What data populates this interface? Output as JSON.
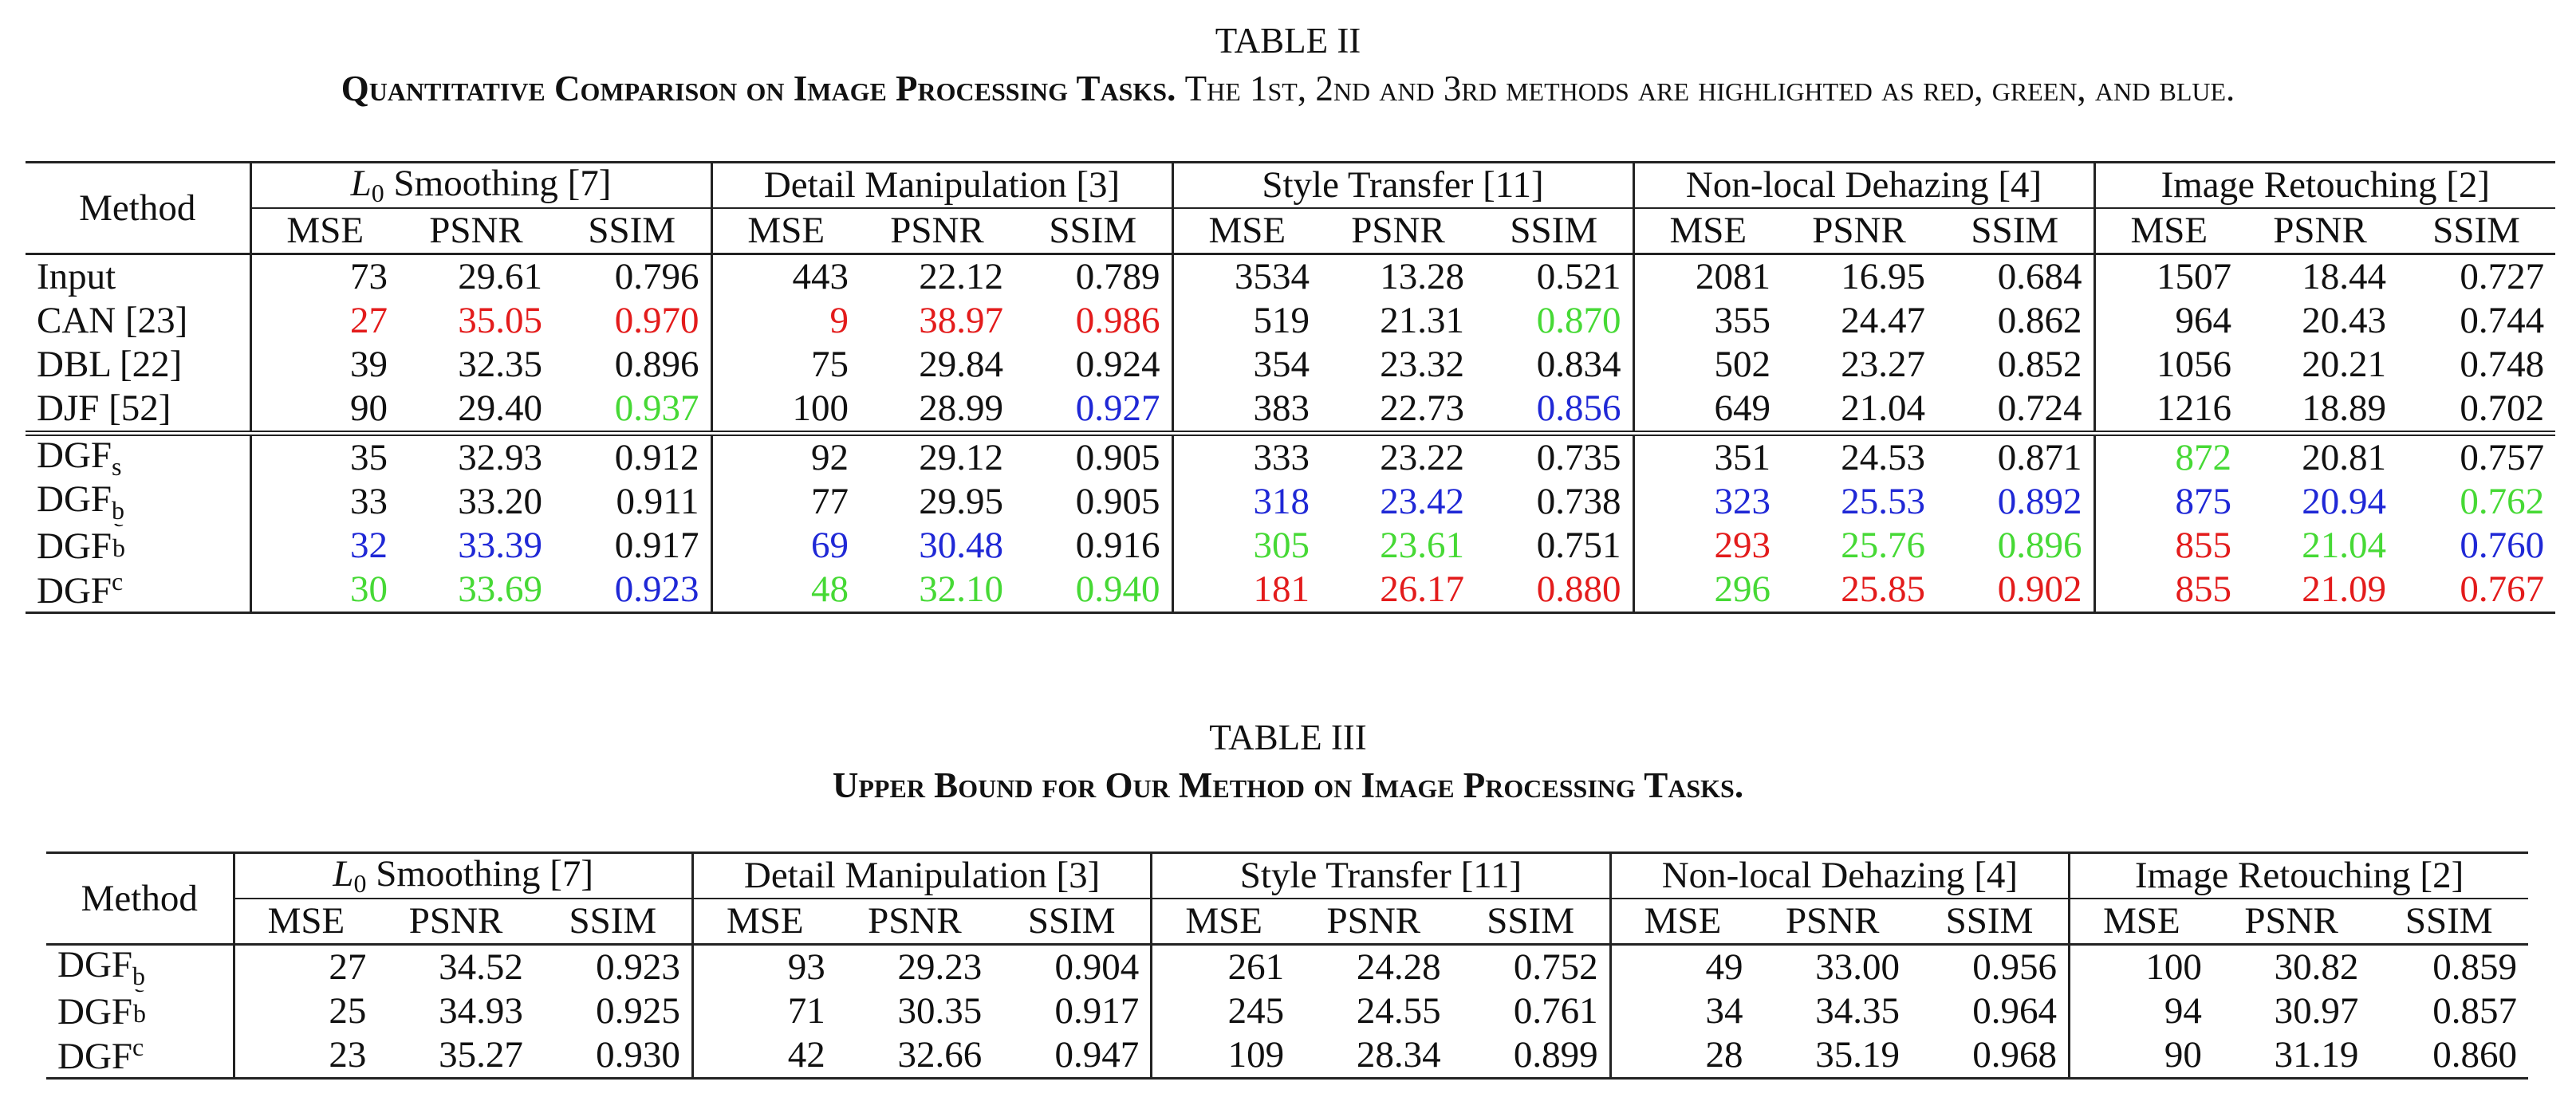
{
  "table2": {
    "label": "TABLE II",
    "title_bold": "Quantitative Comparison on Image Processing Tasks.",
    "title_rest": "The 1st, 2nd and 3rd methods are highlighted as red, green, and blue.",
    "method_header": "Method",
    "groups": [
      "Smoothing [7]",
      "Detail Manipulation [3]",
      "Style Transfer [11]",
      "Non-local Dehazing [4]",
      "Image Retouching [2]"
    ],
    "group0_prefix": "L",
    "group0_sub": "0",
    "metrics": [
      "MSE",
      "PSNR",
      "SSIM"
    ],
    "rows": [
      {
        "name": "Input",
        "cells": [
          [
            "73",
            "k"
          ],
          [
            "29.61",
            "k"
          ],
          [
            "0.796",
            "k"
          ],
          [
            "443",
            "k"
          ],
          [
            "22.12",
            "k"
          ],
          [
            "0.789",
            "k"
          ],
          [
            "3534",
            "k"
          ],
          [
            "13.28",
            "k"
          ],
          [
            "0.521",
            "k"
          ],
          [
            "2081",
            "k"
          ],
          [
            "16.95",
            "k"
          ],
          [
            "0.684",
            "k"
          ],
          [
            "1507",
            "k"
          ],
          [
            "18.44",
            "k"
          ],
          [
            "0.727",
            "k"
          ]
        ]
      },
      {
        "name": "CAN [23]",
        "cells": [
          [
            "27",
            "r"
          ],
          [
            "35.05",
            "r"
          ],
          [
            "0.970",
            "r"
          ],
          [
            "9",
            "r"
          ],
          [
            "38.97",
            "r"
          ],
          [
            "0.986",
            "r"
          ],
          [
            "519",
            "k"
          ],
          [
            "21.31",
            "k"
          ],
          [
            "0.870",
            "g"
          ],
          [
            "355",
            "k"
          ],
          [
            "24.47",
            "k"
          ],
          [
            "0.862",
            "k"
          ],
          [
            "964",
            "k"
          ],
          [
            "20.43",
            "k"
          ],
          [
            "0.744",
            "k"
          ]
        ]
      },
      {
        "name": "DBL [22]",
        "cells": [
          [
            "39",
            "k"
          ],
          [
            "32.35",
            "k"
          ],
          [
            "0.896",
            "k"
          ],
          [
            "75",
            "k"
          ],
          [
            "29.84",
            "k"
          ],
          [
            "0.924",
            "k"
          ],
          [
            "354",
            "k"
          ],
          [
            "23.32",
            "k"
          ],
          [
            "0.834",
            "k"
          ],
          [
            "502",
            "k"
          ],
          [
            "23.27",
            "k"
          ],
          [
            "0.852",
            "k"
          ],
          [
            "1056",
            "k"
          ],
          [
            "20.21",
            "k"
          ],
          [
            "0.748",
            "k"
          ]
        ]
      },
      {
        "name": "DJF [52]",
        "cells": [
          [
            "90",
            "k"
          ],
          [
            "29.40",
            "k"
          ],
          [
            "0.937",
            "g"
          ],
          [
            "100",
            "k"
          ],
          [
            "28.99",
            "k"
          ],
          [
            "0.927",
            "b"
          ],
          [
            "383",
            "k"
          ],
          [
            "22.73",
            "k"
          ],
          [
            "0.856",
            "b"
          ],
          [
            "649",
            "k"
          ],
          [
            "21.04",
            "k"
          ],
          [
            "0.724",
            "k"
          ],
          [
            "1216",
            "k"
          ],
          [
            "18.89",
            "k"
          ],
          [
            "0.702",
            "k"
          ]
        ]
      },
      {
        "name": "DGF",
        "sub": "s",
        "cells": [
          [
            "35",
            "k"
          ],
          [
            "32.93",
            "k"
          ],
          [
            "0.912",
            "k"
          ],
          [
            "92",
            "k"
          ],
          [
            "29.12",
            "k"
          ],
          [
            "0.905",
            "k"
          ],
          [
            "333",
            "k"
          ],
          [
            "23.22",
            "k"
          ],
          [
            "0.735",
            "k"
          ],
          [
            "351",
            "k"
          ],
          [
            "24.53",
            "k"
          ],
          [
            "0.871",
            "k"
          ],
          [
            "872",
            "g"
          ],
          [
            "20.81",
            "k"
          ],
          [
            "0.757",
            "k"
          ]
        ]
      },
      {
        "name": "DGF",
        "sub": "b",
        "cells": [
          [
            "33",
            "k"
          ],
          [
            "33.20",
            "k"
          ],
          [
            "0.911",
            "k"
          ],
          [
            "77",
            "k"
          ],
          [
            "29.95",
            "k"
          ],
          [
            "0.905",
            "k"
          ],
          [
            "318",
            "b"
          ],
          [
            "23.42",
            "b"
          ],
          [
            "0.738",
            "k"
          ],
          [
            "323",
            "b"
          ],
          [
            "25.53",
            "b"
          ],
          [
            "0.892",
            "b"
          ],
          [
            "875",
            "b"
          ],
          [
            "20.94",
            "b"
          ],
          [
            "0.762",
            "g"
          ]
        ]
      },
      {
        "name": "DGF",
        "sub": "b",
        "sup": "c",
        "cells": [
          [
            "32",
            "b"
          ],
          [
            "33.39",
            "b"
          ],
          [
            "0.917",
            "k"
          ],
          [
            "69",
            "b"
          ],
          [
            "30.48",
            "b"
          ],
          [
            "0.916",
            "k"
          ],
          [
            "305",
            "g"
          ],
          [
            "23.61",
            "g"
          ],
          [
            "0.751",
            "k"
          ],
          [
            "293",
            "r"
          ],
          [
            "25.76",
            "g"
          ],
          [
            "0.896",
            "g"
          ],
          [
            "855",
            "r"
          ],
          [
            "21.04",
            "g"
          ],
          [
            "0.760",
            "b"
          ]
        ]
      },
      {
        "name": "DGF",
        "sup": "c",
        "cells": [
          [
            "30",
            "g"
          ],
          [
            "33.69",
            "g"
          ],
          [
            "0.923",
            "b"
          ],
          [
            "48",
            "g"
          ],
          [
            "32.10",
            "g"
          ],
          [
            "0.940",
            "g"
          ],
          [
            "181",
            "r"
          ],
          [
            "26.17",
            "r"
          ],
          [
            "0.880",
            "r"
          ],
          [
            "296",
            "g"
          ],
          [
            "25.85",
            "r"
          ],
          [
            "0.902",
            "r"
          ],
          [
            "855",
            "r"
          ],
          [
            "21.09",
            "r"
          ],
          [
            "0.767",
            "r"
          ]
        ]
      }
    ]
  },
  "table3": {
    "label": "TABLE III",
    "title_bold": "Upper Bound for Our Method on Image Processing Tasks.",
    "method_header": "Method",
    "groups": [
      "Smoothing [7]",
      "Detail Manipulation [3]",
      "Style Transfer [11]",
      "Non-local Dehazing [4]",
      "Image Retouching [2]"
    ],
    "group0_prefix": "L",
    "group0_sub": "0",
    "metrics": [
      "MSE",
      "PSNR",
      "SSIM"
    ],
    "rows": [
      {
        "name": "DGF",
        "sub": "b",
        "cells": [
          [
            "27",
            "k"
          ],
          [
            "34.52",
            "k"
          ],
          [
            "0.923",
            "k"
          ],
          [
            "93",
            "k"
          ],
          [
            "29.23",
            "k"
          ],
          [
            "0.904",
            "k"
          ],
          [
            "261",
            "k"
          ],
          [
            "24.28",
            "k"
          ],
          [
            "0.752",
            "k"
          ],
          [
            "49",
            "k"
          ],
          [
            "33.00",
            "k"
          ],
          [
            "0.956",
            "k"
          ],
          [
            "100",
            "k"
          ],
          [
            "30.82",
            "k"
          ],
          [
            "0.859",
            "k"
          ]
        ]
      },
      {
        "name": "DGF",
        "sub": "b",
        "sup": "c",
        "cells": [
          [
            "25",
            "k"
          ],
          [
            "34.93",
            "k"
          ],
          [
            "0.925",
            "k"
          ],
          [
            "71",
            "k"
          ],
          [
            "30.35",
            "k"
          ],
          [
            "0.917",
            "k"
          ],
          [
            "245",
            "k"
          ],
          [
            "24.55",
            "k"
          ],
          [
            "0.761",
            "k"
          ],
          [
            "34",
            "k"
          ],
          [
            "34.35",
            "k"
          ],
          [
            "0.964",
            "k"
          ],
          [
            "94",
            "k"
          ],
          [
            "30.97",
            "k"
          ],
          [
            "0.857",
            "k"
          ]
        ]
      },
      {
        "name": "DGF",
        "sup": "c",
        "cells": [
          [
            "23",
            "k"
          ],
          [
            "35.27",
            "k"
          ],
          [
            "0.930",
            "k"
          ],
          [
            "42",
            "k"
          ],
          [
            "32.66",
            "k"
          ],
          [
            "0.947",
            "k"
          ],
          [
            "109",
            "k"
          ],
          [
            "28.34",
            "k"
          ],
          [
            "0.899",
            "k"
          ],
          [
            "28",
            "k"
          ],
          [
            "35.19",
            "k"
          ],
          [
            "0.968",
            "k"
          ],
          [
            "90",
            "k"
          ],
          [
            "31.19",
            "k"
          ],
          [
            "0.860",
            "k"
          ]
        ]
      }
    ]
  },
  "colors": {
    "r": "#e31b1b",
    "g": "#46d935",
    "b": "#1f28d6",
    "k": "#111111"
  }
}
